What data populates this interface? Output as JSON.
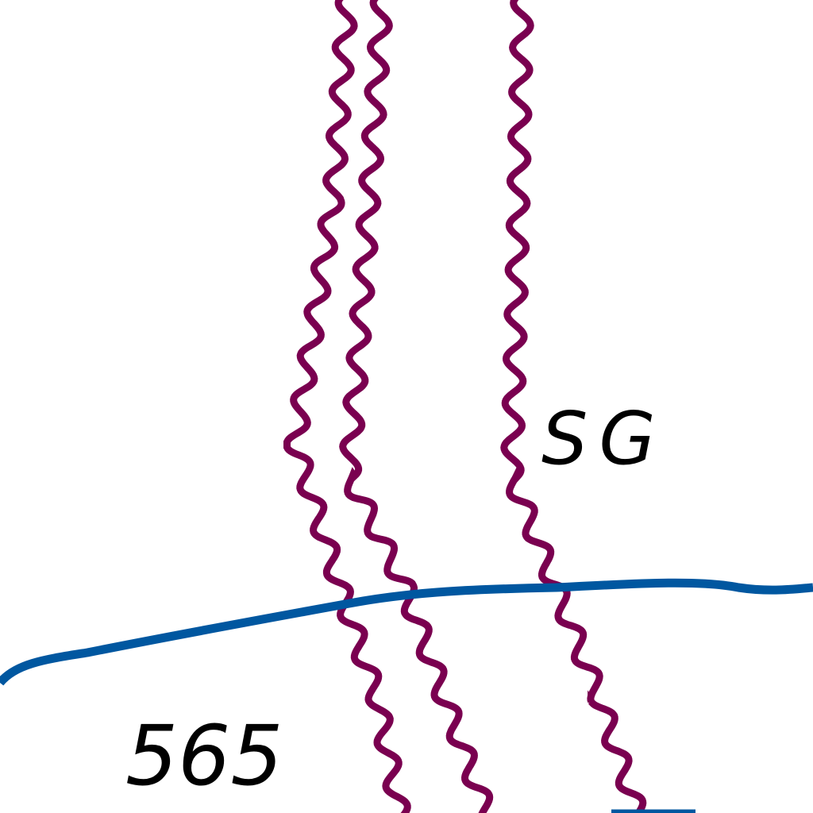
{
  "labels": {
    "sg": "SG",
    "route": "565"
  }
}
